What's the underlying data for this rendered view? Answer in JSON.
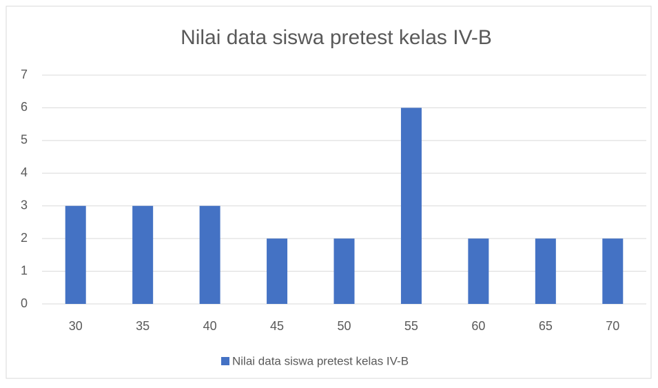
{
  "chart_data": {
    "type": "bar",
    "title": "Nilai data siswa pretest kelas IV-B",
    "categories": [
      "30",
      "35",
      "40",
      "45",
      "50",
      "55",
      "60",
      "65",
      "70"
    ],
    "series": [
      {
        "name": "Nilai data siswa pretest kelas IV-B",
        "color": "#4472c4",
        "values": [
          3,
          3,
          3,
          2,
          2,
          6,
          2,
          2,
          2
        ]
      }
    ],
    "ylim": [
      0,
      7
    ],
    "yticks": [
      0,
      1,
      2,
      3,
      4,
      5,
      6,
      7
    ],
    "grid": true,
    "legend": "bottom"
  }
}
